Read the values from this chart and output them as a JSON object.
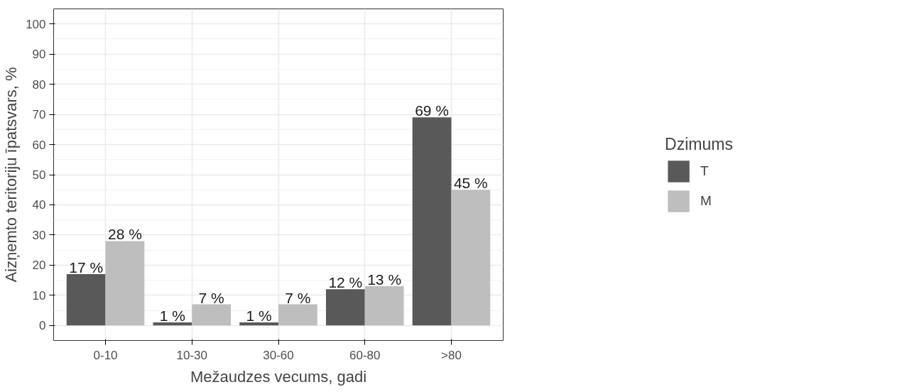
{
  "chart_data": {
    "type": "bar",
    "xlabel": "Mežaudzes vecums, gadi",
    "ylabel": "Aizņemto teritoriju īpatsvars, %",
    "legend_title": "Dzimums",
    "categories": [
      "0-10",
      "10-30",
      "30-60",
      "60-80",
      ">80"
    ],
    "series": [
      {
        "name": "T",
        "color": "#595959",
        "values": [
          17,
          1,
          1,
          12,
          69
        ],
        "value_labels": [
          "17 %",
          "1 %",
          "1 %",
          "12 %",
          "69 %"
        ]
      },
      {
        "name": "M",
        "color": "#bebebe",
        "values": [
          28,
          7,
          7,
          13,
          45
        ],
        "value_labels": [
          "28 %",
          "7 %",
          "7 %",
          "13 %",
          "45 %"
        ]
      }
    ],
    "ylim": [
      -5,
      105
    ],
    "yticks": [
      0,
      10,
      20,
      30,
      40,
      50,
      60,
      70,
      80,
      90,
      100
    ],
    "grid": true,
    "legend": "right"
  }
}
